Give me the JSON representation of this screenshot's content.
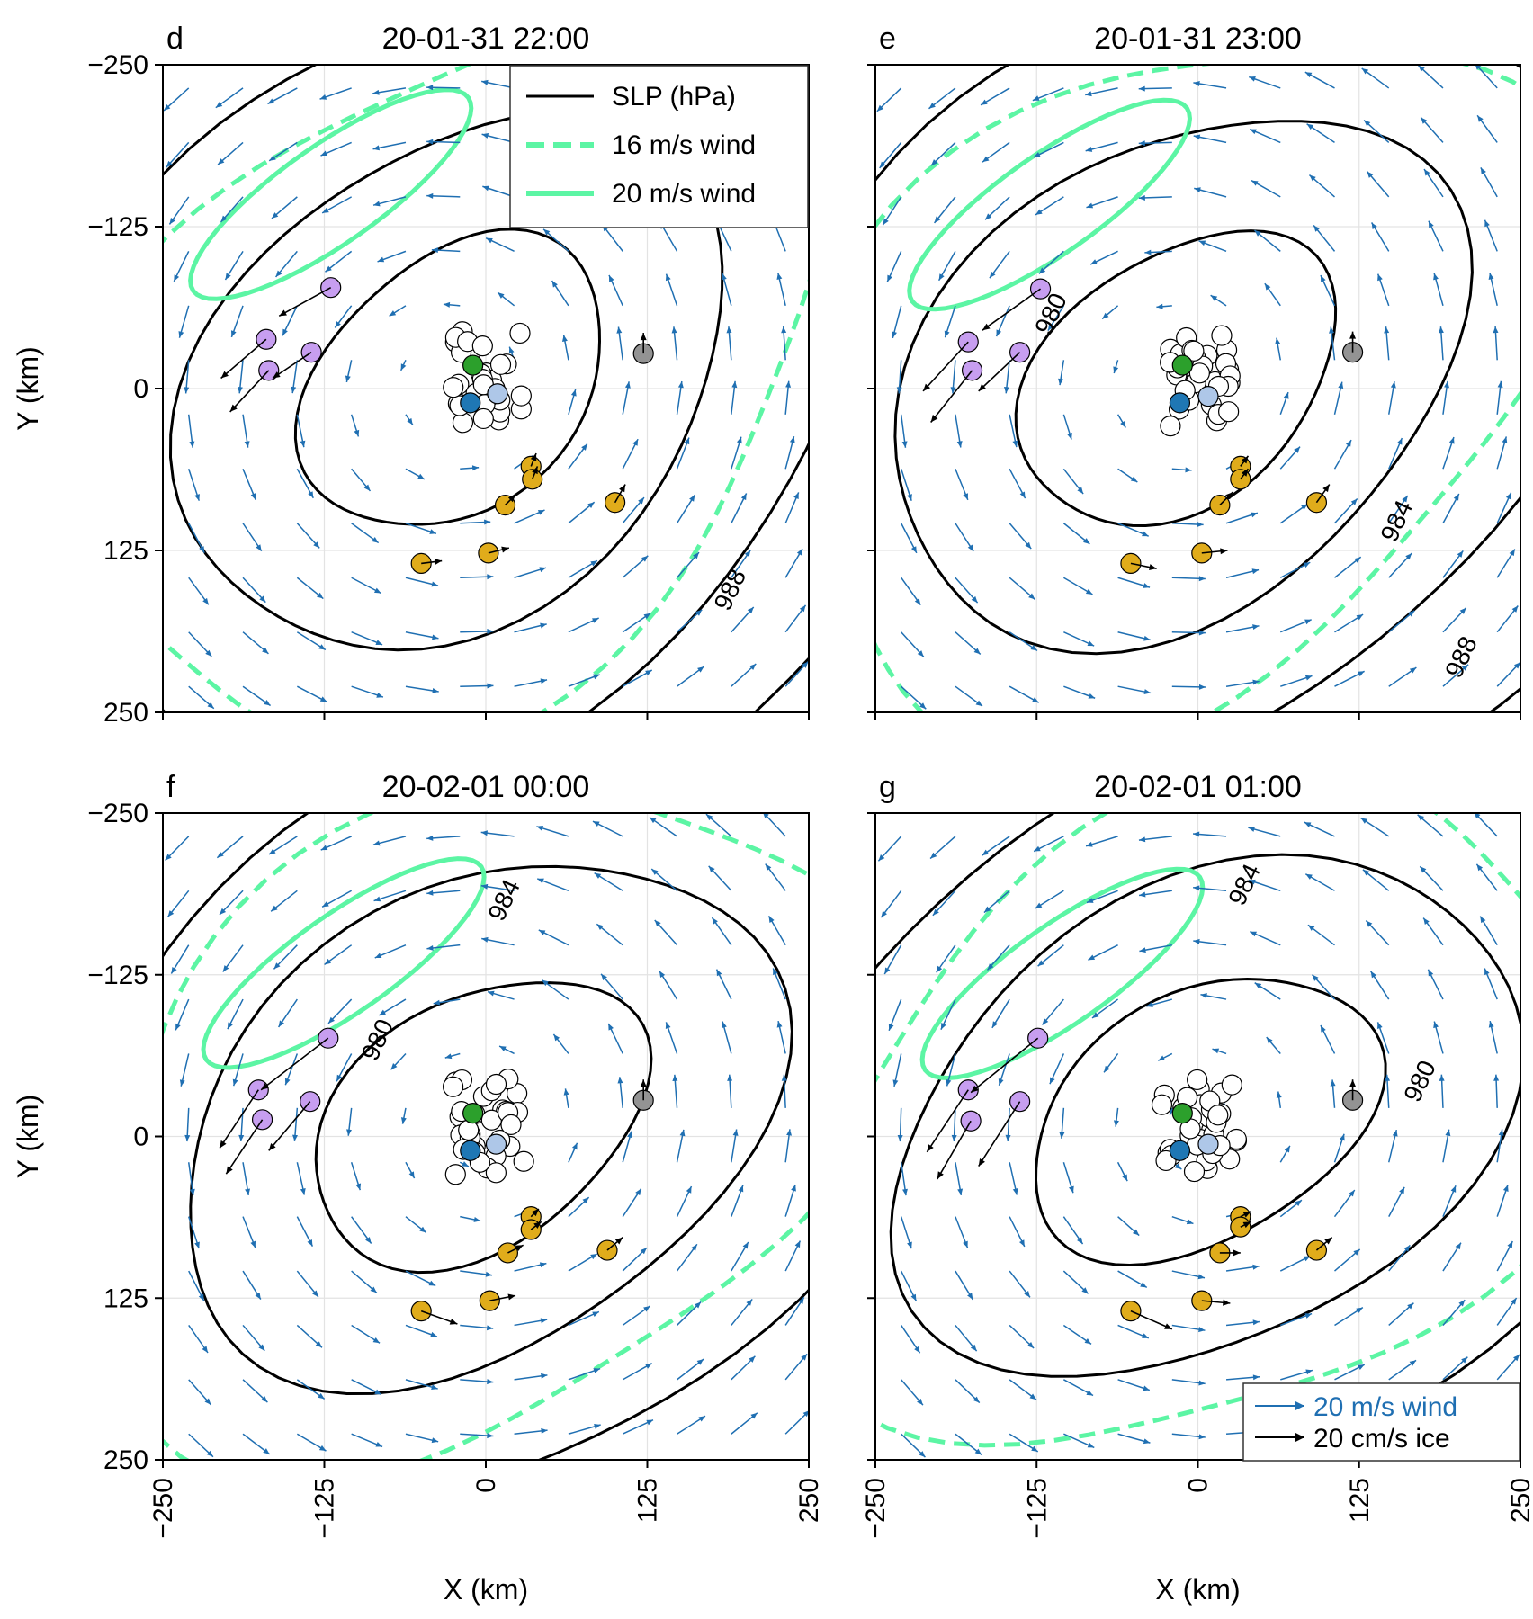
{
  "figure": {
    "x_axis_label": "X (km)",
    "y_axis_label": "Y (km)",
    "x_ticks": [
      "−250",
      "−125",
      "0",
      "125",
      "250"
    ],
    "y_ticks": [
      "250",
      "125",
      "0",
      "−125",
      "−250"
    ],
    "legend_top": [
      {
        "label": "SLP (hPa)",
        "style": "solid",
        "color": "#000000"
      },
      {
        "label": "16 m/s wind",
        "style": "dashed",
        "color": "#5cf5a4"
      },
      {
        "label": "20 m/s wind",
        "style": "solid",
        "color": "#5cf5a4"
      }
    ],
    "legend_bottom": [
      {
        "label": "20 m/s wind",
        "color": "#1f6fb2"
      },
      {
        "label": "20 cm/s ice",
        "color": "#000000"
      }
    ],
    "colors": {
      "slp": "#000000",
      "wind_contour": "#5cf5a4",
      "wind_vector": "#1f6fb2",
      "ice_vector": "#000000",
      "buoy_purple": "#c79ef0",
      "buoy_orange": "#e0ac1b",
      "buoy_gray": "#939393",
      "buoy_green": "#2ca02c",
      "buoy_blue": "#1f77b4",
      "buoy_lightblue": "#aec7e8",
      "buoy_white": "#ffffff"
    }
  },
  "chart_data": [
    {
      "type": "contour-quiver",
      "panel_label": "d",
      "title": "20-01-31 22:00",
      "xlim": [
        -250,
        250
      ],
      "ylim": [
        -250,
        250
      ],
      "xlabel": "",
      "ylabel": "Y (km)",
      "slp_contour_labels": [
        {
          "text": "988",
          "x": 195,
          "y": -158
        }
      ],
      "ice_buoys": [
        {
          "color": "purple",
          "x": -170,
          "y": 38,
          "u": -35,
          "v": -30
        },
        {
          "color": "purple",
          "x": -168,
          "y": 14,
          "u": -30,
          "v": -32
        },
        {
          "color": "purple",
          "x": -135,
          "y": 28,
          "u": -30,
          "v": -20
        },
        {
          "color": "purple",
          "x": -120,
          "y": 78,
          "u": -40,
          "v": -22
        },
        {
          "color": "orange",
          "x": 35,
          "y": -60,
          "u": 4,
          "v": 10
        },
        {
          "color": "orange",
          "x": 36,
          "y": -70,
          "u": 4,
          "v": 10
        },
        {
          "color": "orange",
          "x": 15,
          "y": -90,
          "u": 8,
          "v": 8
        },
        {
          "color": "orange",
          "x": 100,
          "y": -88,
          "u": 8,
          "v": 14
        },
        {
          "color": "orange",
          "x": -50,
          "y": -135,
          "u": 16,
          "v": 2
        },
        {
          "color": "orange",
          "x": 2,
          "y": -127,
          "u": 16,
          "v": 4
        },
        {
          "color": "gray",
          "x": 122,
          "y": 27,
          "u": 0,
          "v": 16
        },
        {
          "color": "green",
          "x": -10,
          "y": 18,
          "u": 0,
          "v": 0
        },
        {
          "color": "blue",
          "x": -12,
          "y": -11,
          "u": 0,
          "v": 0
        },
        {
          "color": "lightblue",
          "x": 9,
          "y": -4,
          "u": 0,
          "v": 0
        }
      ],
      "gridlines": true
    },
    {
      "type": "contour-quiver",
      "panel_label": "e",
      "title": "20-01-31 23:00",
      "xlim": [
        -250,
        250
      ],
      "ylim": [
        -250,
        250
      ],
      "xlabel": "",
      "ylabel": "",
      "slp_contour_labels": [
        {
          "text": "980",
          "x": -108,
          "y": 55
        },
        {
          "text": "984",
          "x": 160,
          "y": -105
        },
        {
          "text": "988",
          "x": 210,
          "y": -210
        }
      ],
      "ice_buoys": [
        {
          "color": "purple",
          "x": -178,
          "y": 36,
          "u": -35,
          "v": -38
        },
        {
          "color": "purple",
          "x": -175,
          "y": 14,
          "u": -32,
          "v": -40
        },
        {
          "color": "purple",
          "x": -138,
          "y": 28,
          "u": -32,
          "v": -30
        },
        {
          "color": "purple",
          "x": -122,
          "y": 77,
          "u": -45,
          "v": -32
        },
        {
          "color": "orange",
          "x": 33,
          "y": -60,
          "u": 6,
          "v": 8
        },
        {
          "color": "orange",
          "x": 33,
          "y": -70,
          "u": 6,
          "v": 8
        },
        {
          "color": "orange",
          "x": 17,
          "y": -90,
          "u": 10,
          "v": 10
        },
        {
          "color": "orange",
          "x": 92,
          "y": -88,
          "u": 10,
          "v": 14
        },
        {
          "color": "orange",
          "x": -52,
          "y": -135,
          "u": 20,
          "v": -4
        },
        {
          "color": "orange",
          "x": 3,
          "y": -127,
          "u": 20,
          "v": 2
        },
        {
          "color": "gray",
          "x": 120,
          "y": 28,
          "u": 0,
          "v": 16
        },
        {
          "color": "green",
          "x": -12,
          "y": 18,
          "u": 0,
          "v": 0
        },
        {
          "color": "blue",
          "x": -14,
          "y": -11,
          "u": 0,
          "v": 0
        },
        {
          "color": "lightblue",
          "x": 8,
          "y": -6,
          "u": 0,
          "v": 0
        }
      ],
      "gridlines": true
    },
    {
      "type": "contour-quiver",
      "panel_label": "f",
      "title": "20-02-01 00:00",
      "xlim": [
        -250,
        250
      ],
      "ylim": [
        -250,
        250
      ],
      "xlabel": "X (km)",
      "ylabel": "Y (km)",
      "slp_contour_labels": [
        {
          "text": "984",
          "x": 20,
          "y": 180
        },
        {
          "text": "980",
          "x": -78,
          "y": 72
        }
      ],
      "ice_buoys": [
        {
          "color": "purple",
          "x": -176,
          "y": 36,
          "u": -30,
          "v": -45
        },
        {
          "color": "purple",
          "x": -173,
          "y": 13,
          "u": -28,
          "v": -42
        },
        {
          "color": "purple",
          "x": -136,
          "y": 27,
          "u": -32,
          "v": -38
        },
        {
          "color": "purple",
          "x": -122,
          "y": 76,
          "u": -52,
          "v": -40
        },
        {
          "color": "orange",
          "x": 35,
          "y": -62,
          "u": 6,
          "v": 6
        },
        {
          "color": "orange",
          "x": 35,
          "y": -72,
          "u": 8,
          "v": 6
        },
        {
          "color": "orange",
          "x": 17,
          "y": -90,
          "u": 12,
          "v": 6
        },
        {
          "color": "orange",
          "x": 94,
          "y": -88,
          "u": 12,
          "v": 10
        },
        {
          "color": "orange",
          "x": -50,
          "y": -135,
          "u": 28,
          "v": -10
        },
        {
          "color": "orange",
          "x": 3,
          "y": -127,
          "u": 20,
          "v": 4
        },
        {
          "color": "gray",
          "x": 122,
          "y": 28,
          "u": 0,
          "v": 16
        },
        {
          "color": "green",
          "x": -10,
          "y": 18,
          "u": 0,
          "v": 0
        },
        {
          "color": "blue",
          "x": -12,
          "y": -11,
          "u": 0,
          "v": 0
        },
        {
          "color": "lightblue",
          "x": 8,
          "y": -6,
          "u": 0,
          "v": 0
        }
      ],
      "gridlines": true
    },
    {
      "type": "contour-quiver",
      "panel_label": "g",
      "title": "20-02-01 01:00",
      "xlim": [
        -250,
        250
      ],
      "ylim": [
        -250,
        250
      ],
      "xlabel": "X (km)",
      "ylabel": "",
      "slp_contour_labels": [
        {
          "text": "984",
          "x": 42,
          "y": 192
        },
        {
          "text": "980",
          "x": 178,
          "y": 40
        }
      ],
      "ice_buoys": [
        {
          "color": "purple",
          "x": -178,
          "y": 36,
          "u": -32,
          "v": -48
        },
        {
          "color": "purple",
          "x": -176,
          "y": 12,
          "u": -26,
          "v": -45
        },
        {
          "color": "purple",
          "x": -138,
          "y": 27,
          "u": -32,
          "v": -50
        },
        {
          "color": "purple",
          "x": -124,
          "y": 76,
          "u": -52,
          "v": -42
        },
        {
          "color": "orange",
          "x": 33,
          "y": -62,
          "u": 8,
          "v": 4
        },
        {
          "color": "orange",
          "x": 33,
          "y": -70,
          "u": 8,
          "v": 4
        },
        {
          "color": "orange",
          "x": 17,
          "y": -90,
          "u": 16,
          "v": 0
        },
        {
          "color": "orange",
          "x": 92,
          "y": -88,
          "u": 12,
          "v": 10
        },
        {
          "color": "orange",
          "x": -52,
          "y": -135,
          "u": 32,
          "v": -14
        },
        {
          "color": "orange",
          "x": 3,
          "y": -127,
          "u": 22,
          "v": -2
        },
        {
          "color": "gray",
          "x": 120,
          "y": 28,
          "u": 0,
          "v": 16
        },
        {
          "color": "green",
          "x": -12,
          "y": 18,
          "u": 0,
          "v": 0
        },
        {
          "color": "blue",
          "x": -14,
          "y": -11,
          "u": 0,
          "v": 0
        },
        {
          "color": "lightblue",
          "x": 8,
          "y": -6,
          "u": 0,
          "v": 0
        }
      ],
      "gridlines": true
    }
  ]
}
